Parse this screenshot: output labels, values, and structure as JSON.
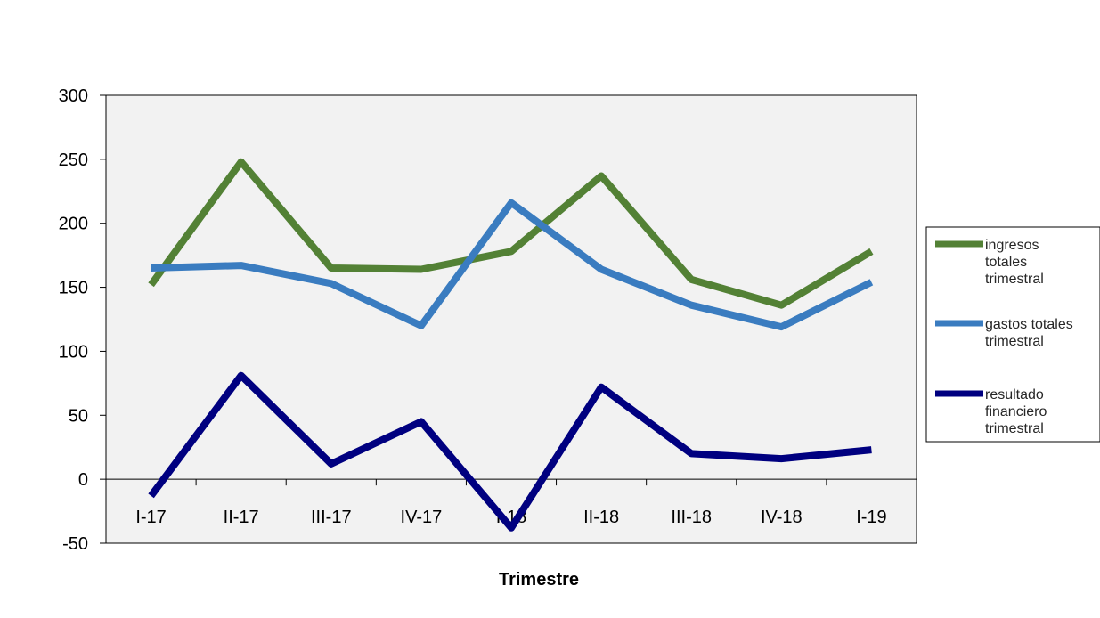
{
  "chart_data": {
    "type": "line",
    "title": "",
    "xlabel": "Trimestre",
    "ylabel": "",
    "categories": [
      "I-17",
      "II-17",
      "III-17",
      "IV-17",
      "I-18",
      "II-18",
      "III-18",
      "IV-18",
      "I-19"
    ],
    "ylim": [
      -50,
      300
    ],
    "yticks": [
      -50,
      0,
      50,
      100,
      150,
      200,
      250,
      300
    ],
    "grid": false,
    "legend_position": "right",
    "series": [
      {
        "name": "ingresos totales trimestral",
        "legend_lines": [
          "ingresos",
          "totales",
          "trimestral"
        ],
        "color": "#538135",
        "values": [
          152,
          248,
          165,
          164,
          178,
          237,
          156,
          136,
          178
        ]
      },
      {
        "name": "gastos totales trimestral",
        "legend_lines": [
          "gastos totales",
          "trimestral"
        ],
        "color": "#3A7CC0",
        "values": [
          165,
          167,
          153,
          120,
          216,
          164,
          136,
          119,
          154
        ]
      },
      {
        "name": "resultado financiero trimestral",
        "legend_lines": [
          "resultado",
          "financiero",
          "trimestral"
        ],
        "color": "#000080",
        "values": [
          -13,
          81,
          12,
          45,
          -38,
          72,
          20,
          16,
          23
        ]
      }
    ],
    "colors": {
      "plot_background": "#F2F2F2",
      "axis": "#000000"
    }
  }
}
